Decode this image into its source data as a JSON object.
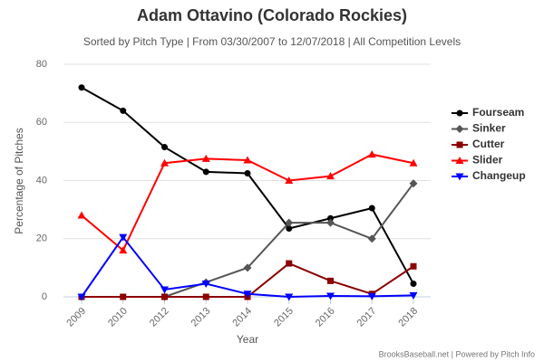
{
  "chart_data": {
    "type": "line",
    "title": "Adam Ottavino (Colorado Rockies)",
    "subtitle": "Sorted by Pitch Type | From 03/30/2007 to 12/07/2018 | All Competition Levels",
    "x_label": "Year",
    "y_label": "Percentage of Pitches",
    "credit": "BrooksBaseball.net | Powered by Pitch Info",
    "categories": [
      "2009",
      "2010",
      "2012",
      "2013",
      "2014",
      "2015",
      "2016",
      "2017",
      "2018"
    ],
    "ylim": [
      0,
      80
    ],
    "yticks": [
      0,
      20,
      40,
      60,
      80
    ],
    "grid": true,
    "series": [
      {
        "name": "Fourseam",
        "color": "#000000",
        "marker": "circle",
        "values": [
          72,
          64,
          51.5,
          43,
          42.5,
          23.5,
          27,
          30.5,
          4.5
        ]
      },
      {
        "name": "Sinker",
        "color": "#555555",
        "marker": "diamond",
        "values": [
          null,
          null,
          0,
          5,
          10,
          25.5,
          25.5,
          20,
          39
        ]
      },
      {
        "name": "Cutter",
        "color": "#8b0000",
        "marker": "square",
        "values": [
          0,
          0,
          0,
          0,
          0,
          11.5,
          5.5,
          1,
          10.5
        ]
      },
      {
        "name": "Slider",
        "color": "#ff0000",
        "marker": "triangle",
        "values": [
          28,
          16,
          46,
          47.5,
          47,
          40,
          41.5,
          49,
          46
        ]
      },
      {
        "name": "Changeup",
        "color": "#0000ff",
        "marker": "triangle-down",
        "values": [
          0,
          20.5,
          2.5,
          4.5,
          1,
          0,
          0.3,
          0.2,
          0.5
        ]
      }
    ]
  }
}
